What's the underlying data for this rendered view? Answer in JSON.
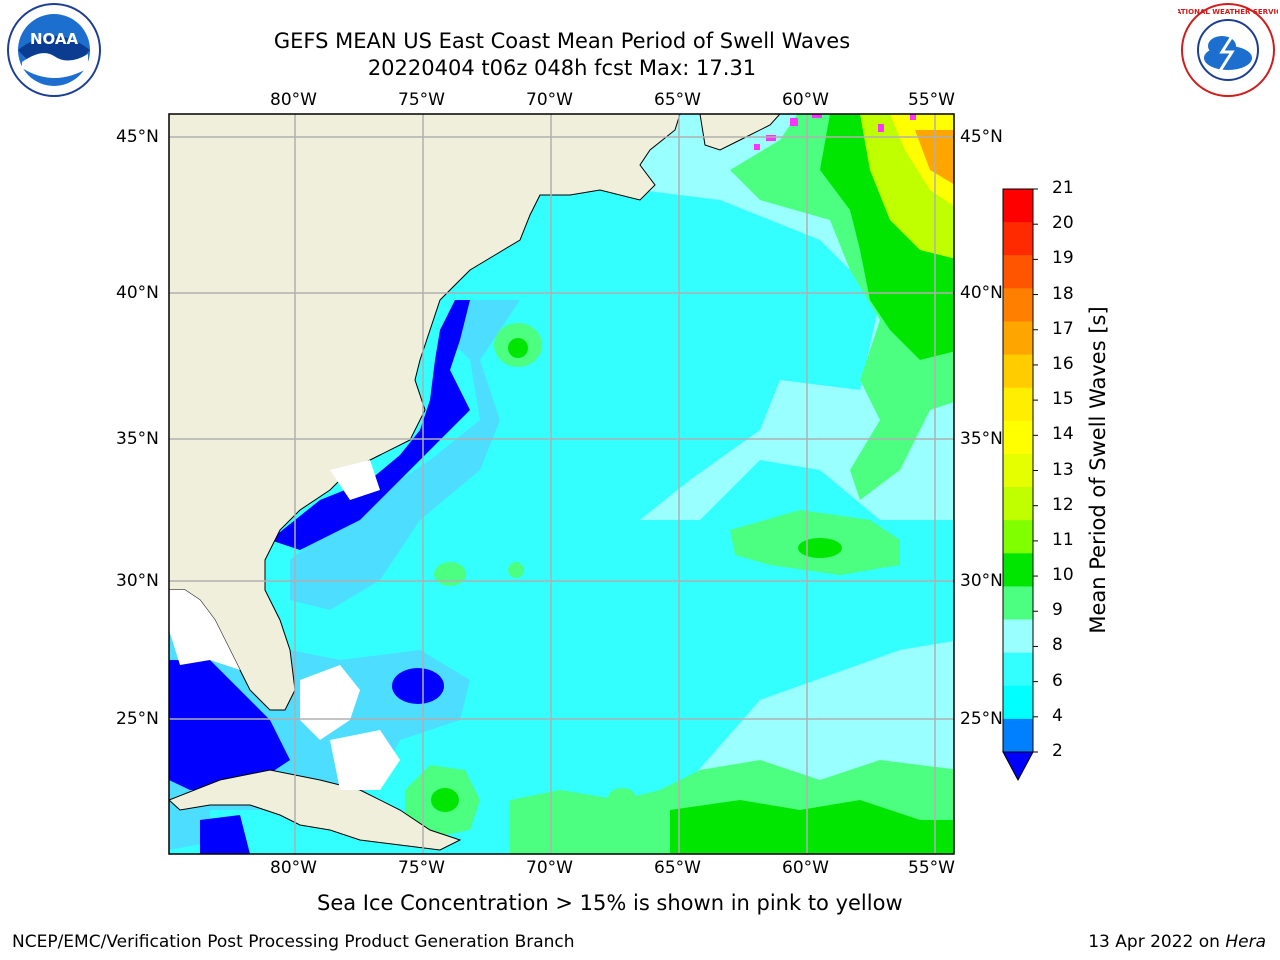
{
  "title": {
    "line1": "GEFS MEAN US East Coast Mean Period of Swell Waves",
    "line2": "20220404 t06z 048h fcst   Max: 17.31"
  },
  "map": {
    "lon_labels": [
      "80°W",
      "75°W",
      "70°W",
      "65°W",
      "60°W",
      "55°W"
    ],
    "lat_labels": [
      "45°N",
      "40°N",
      "35°N",
      "30°N",
      "25°N"
    ],
    "colors": {
      "land": "#efefdc",
      "ocean_main": "#33ffff",
      "ocean_light": "#99ffff",
      "ocean_mid": "#4ddcff",
      "deep_blue": "#0000ff",
      "blue": "#0080ff",
      "green_light": "#4dff80",
      "green": "#00e600",
      "yellow_green": "#bfff00",
      "yellow": "#ffff00",
      "orange": "#ffa500",
      "ice": "#ff33ff",
      "grid": "#b0b0b0"
    }
  },
  "colorbar": {
    "title": "Mean Period of Swell Waves [s]",
    "ticks": [
      "21",
      "20",
      "19",
      "18",
      "17",
      "16",
      "15",
      "14",
      "13",
      "12",
      "11",
      "10",
      "9",
      "8",
      "6",
      "4",
      "2"
    ],
    "colors": [
      "#ff0000",
      "#ff2a00",
      "#ff5500",
      "#ff8000",
      "#ffa500",
      "#ffcc00",
      "#ffee00",
      "#ffff00",
      "#e6ff00",
      "#bfff00",
      "#80ff00",
      "#00e600",
      "#4dff80",
      "#99ffff",
      "#33ffff",
      "#00ffff",
      "#0080ff"
    ]
  },
  "note": "Sea Ice Concentration > 15% is shown in pink to yellow",
  "footer": {
    "left": "NCEP/EMC/Verification Post Processing Product Generation Branch",
    "date": "13 Apr 2022 on",
    "host": "Hera"
  },
  "logos": {
    "left": "NOAA",
    "right": "NATIONAL WEATHER SERVICE"
  }
}
